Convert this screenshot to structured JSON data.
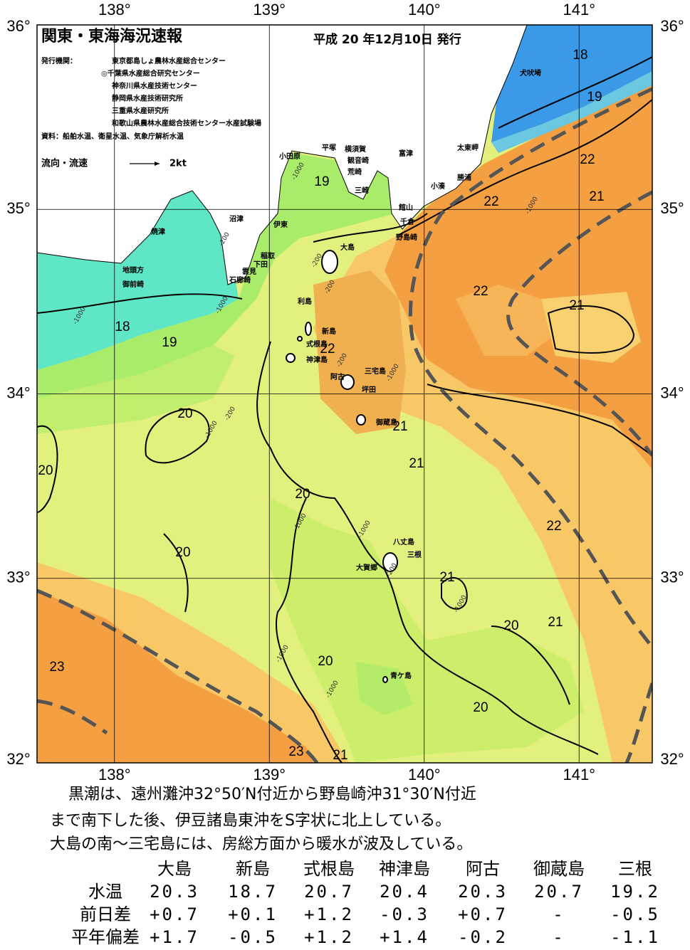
{
  "header": {
    "title": "関東・東海海況速報",
    "date": "平成 20 年12月10日 発行",
    "issuer_label": "発行機関：",
    "issuers": [
      "東京都島しょ農林水産総合センター",
      "◎千葉県水産総合研究センター",
      "神奈川県水産技術センター",
      "静岡県水産技術研究所",
      "三重県水産研究所",
      "和歌山県農林水産総合技術センター水産試験場"
    ],
    "source": "資料：船舶水温、衛星水温、気象庁解析水温",
    "arrow_label": "流向・流速",
    "arrow_speed": "2kt"
  },
  "map": {
    "lon_ticks": [
      {
        "value": 138,
        "label": "138°"
      },
      {
        "value": 139,
        "label": "139°"
      },
      {
        "value": 140,
        "label": "140°"
      },
      {
        "value": 141,
        "label": "141°"
      }
    ],
    "lat_ticks": [
      {
        "value": 36,
        "label": "36°"
      },
      {
        "value": 35,
        "label": "35°"
      },
      {
        "value": 34,
        "label": "34°"
      },
      {
        "value": 33,
        "label": "33°"
      },
      {
        "value": 32,
        "label": "32°"
      }
    ],
    "places": [
      "犬吠埼",
      "太東岬",
      "勝浦",
      "小湊",
      "富津",
      "横須賀",
      "観音崎",
      "荒崎",
      "三崎",
      "館山",
      "千倉",
      "野島崎",
      "平塚",
      "小田原",
      "伊東",
      "沼津",
      "稲取",
      "下田",
      "雲見",
      "石廊崎",
      "焼津",
      "地頭方",
      "御前崎",
      "大島",
      "利島",
      "新島",
      "式根島",
      "神津島",
      "三宅島",
      "阿古",
      "坪田",
      "御蔵島",
      "八丈島",
      "三根",
      "大賀郷",
      "青ケ島"
    ],
    "contour_labels": [
      18,
      19,
      22,
      21,
      22,
      22,
      21,
      19,
      18,
      19,
      22,
      20,
      21,
      20,
      21,
      20,
      22,
      20,
      21,
      21,
      20,
      23,
      20,
      20,
      23,
      21
    ],
    "depth_labels": [
      -1000,
      -200,
      -200,
      -1000,
      -1000,
      -200,
      -1000,
      -1000,
      -1000,
      -200,
      -1000,
      -200,
      -1000,
      -1000,
      -1000,
      -1000,
      -200
    ]
  },
  "summary": [
    "黒潮は、遠州灘沖32°50′N付近から野島崎沖31°30′N付近",
    "まで南下した後、伊豆諸島東沖をS字状に北上している。",
    "大島の南～三宅島には、房総方面から暖水が波及している。"
  ],
  "table": {
    "columns": [
      "大島",
      "新島",
      "式根島",
      "神津島",
      "阿古",
      "御蔵島",
      "三根"
    ],
    "rows": [
      {
        "label": "水温",
        "values": [
          "20.3",
          "18.7",
          "20.7",
          "20.4",
          "20.3",
          "20.7",
          "19.2"
        ]
      },
      {
        "label": "前日差",
        "values": [
          "+0.7",
          "+0.1",
          "+1.2",
          "-0.3",
          "+0.7",
          "-",
          "-0.5"
        ]
      },
      {
        "label": "平年偏差",
        "values": [
          "+1.7",
          "-0.5",
          "+1.2",
          "+1.4",
          "-0.2",
          "-",
          "-1.1"
        ]
      }
    ]
  }
}
